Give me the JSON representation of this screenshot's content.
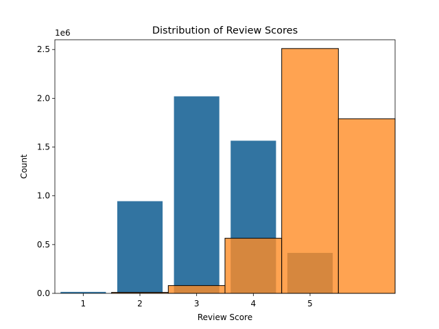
{
  "chart_data": {
    "type": "bar",
    "title": "Distribution of Review Scores",
    "xlabel": "Review Score",
    "ylabel": "Count",
    "y_offset_label": "1e6",
    "y_multiplier": 1000000,
    "ylim": [
      0,
      2600000
    ],
    "xlim": [
      0.5,
      6.5
    ],
    "x_ticks": [
      1,
      2,
      3,
      4,
      5
    ],
    "y_ticks": [
      0,
      500000,
      1000000,
      1500000,
      2000000,
      2500000
    ],
    "grid": false,
    "series": [
      {
        "color": "#3274a1",
        "edgecolor": "none",
        "bar_width": 0.8,
        "x": [
          1,
          2,
          3,
          4,
          5
        ],
        "values": [
          15000,
          945000,
          2020000,
          1565000,
          415000
        ]
      },
      {
        "color": "#ff8c26",
        "opacity": 0.8,
        "edgecolor": "#000000",
        "bins": [
          {
            "start": 1.5,
            "end": 2.5,
            "value": 10000
          },
          {
            "start": 2.5,
            "end": 3.5,
            "value": 80000
          },
          {
            "start": 3.5,
            "end": 4.5,
            "value": 565000
          },
          {
            "start": 4.5,
            "end": 5.5,
            "value": 2510000
          },
          {
            "start": 5.5,
            "end": 6.5,
            "value": 1790000
          }
        ]
      }
    ]
  }
}
